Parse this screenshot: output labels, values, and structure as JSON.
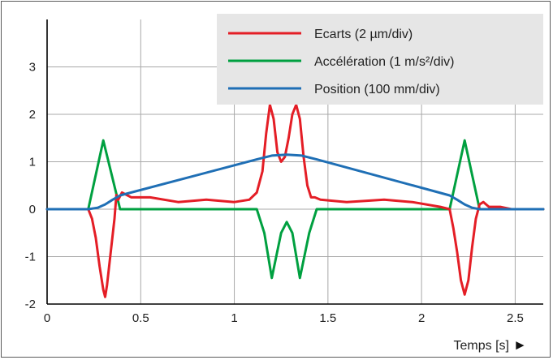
{
  "chart_data": {
    "type": "line",
    "title": "",
    "xlabel": "Temps [s]",
    "xlabel_marker": "►",
    "ylabel": "",
    "xlim": [
      0,
      2.65
    ],
    "ylim": [
      -2,
      4
    ],
    "x_ticks": [
      0,
      0.5,
      1,
      1.5,
      2,
      2.5
    ],
    "x_tick_labels": [
      "0",
      "0.5",
      "1",
      "1.5",
      "2",
      "2.5"
    ],
    "y_ticks": [
      -2,
      -1,
      0,
      1,
      2,
      3
    ],
    "y_tick_labels": [
      "-2",
      "-1",
      "0",
      "1",
      "2",
      "3"
    ],
    "grid": true,
    "legend_position": "top-right",
    "legend_background": "#e6e6e6",
    "series": [
      {
        "name": "Ecarts (2 µm/div)",
        "color": "#e41e26",
        "x": [
          0,
          0.06,
          0.22,
          0.24,
          0.26,
          0.28,
          0.3,
          0.31,
          0.32,
          0.34,
          0.36,
          0.37,
          0.38,
          0.4,
          0.45,
          0.55,
          0.7,
          0.85,
          1.0,
          1.08,
          1.12,
          1.15,
          1.17,
          1.19,
          1.21,
          1.23,
          1.25,
          1.27,
          1.29,
          1.31,
          1.33,
          1.35,
          1.37,
          1.39,
          1.41,
          1.43,
          1.46,
          1.6,
          1.8,
          1.95,
          2.1,
          2.15,
          2.17,
          2.19,
          2.21,
          2.23,
          2.25,
          2.27,
          2.29,
          2.31,
          2.33,
          2.36,
          2.42,
          2.48,
          2.65
        ],
        "y": [
          0,
          0,
          0,
          -0.2,
          -0.6,
          -1.2,
          -1.7,
          -1.85,
          -1.6,
          -0.9,
          -0.2,
          0.3,
          0.2,
          0.35,
          0.25,
          0.25,
          0.15,
          0.2,
          0.15,
          0.2,
          0.35,
          0.8,
          1.6,
          2.2,
          1.9,
          1.2,
          1.0,
          1.1,
          1.5,
          2.0,
          2.2,
          1.9,
          1.1,
          0.5,
          0.25,
          0.25,
          0.2,
          0.15,
          0.2,
          0.15,
          0.05,
          0.0,
          -0.4,
          -0.9,
          -1.5,
          -1.8,
          -1.5,
          -0.8,
          -0.2,
          0.1,
          0.15,
          0.05,
          0.05,
          0.0,
          0.0
        ]
      },
      {
        "name": "Accélération (1 m/s²/div)",
        "color": "#00a040",
        "x": [
          0,
          0.22,
          0.3,
          0.39,
          1.12,
          1.16,
          1.2,
          1.25,
          1.28,
          1.31,
          1.35,
          1.4,
          1.44,
          2.15,
          2.23,
          2.31,
          2.65
        ],
        "y": [
          0,
          0,
          1.45,
          0,
          0,
          -0.5,
          -1.45,
          -0.5,
          -0.27,
          -0.5,
          -1.45,
          -0.5,
          0,
          0,
          1.45,
          0,
          0
        ]
      },
      {
        "name": "Position (100 mm/div)",
        "color": "#1f6fb5",
        "x": [
          0,
          0.22,
          0.27,
          0.31,
          0.35,
          0.39,
          1.12,
          1.2,
          1.28,
          1.36,
          1.44,
          2.15,
          2.19,
          2.23,
          2.27,
          2.31,
          2.65
        ],
        "y": [
          0,
          0,
          0.03,
          0.1,
          0.2,
          0.29,
          1.05,
          1.13,
          1.15,
          1.13,
          1.05,
          0.29,
          0.2,
          0.1,
          0.03,
          0,
          0
        ]
      }
    ]
  }
}
